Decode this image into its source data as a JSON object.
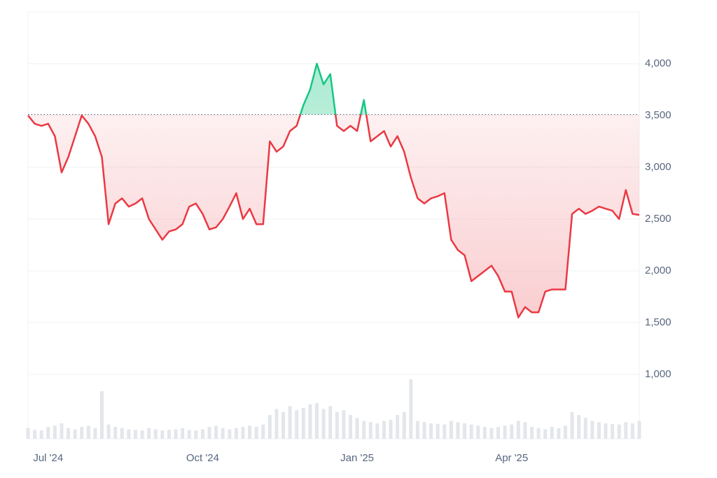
{
  "chart_data": {
    "type": "line",
    "categories": [
      null,
      null,
      null,
      "Jul '24",
      null,
      null,
      null,
      null,
      null,
      null,
      null,
      null,
      null,
      null,
      null,
      null,
      null,
      null,
      null,
      null,
      null,
      null,
      null,
      null,
      null,
      null,
      "Oct '24",
      null,
      null,
      null,
      null,
      null,
      null,
      null,
      null,
      null,
      null,
      null,
      null,
      null,
      null,
      null,
      null,
      null,
      null,
      null,
      null,
      null,
      null,
      "Jan '25",
      null,
      null,
      null,
      null,
      null,
      null,
      null,
      null,
      null,
      null,
      null,
      null,
      null,
      null,
      null,
      null,
      null,
      null,
      null,
      null,
      null,
      null,
      "Apr '25",
      null,
      null,
      null,
      null,
      null,
      null,
      null,
      null,
      null,
      null,
      null,
      null,
      null,
      null,
      null,
      null,
      null,
      null,
      null
    ],
    "series": [
      {
        "values": [
          3500,
          3420,
          3400,
          3420,
          3300,
          2950,
          3100,
          3300,
          3500,
          3420,
          3300,
          3100,
          2450,
          2650,
          2700,
          2620,
          2650,
          2700,
          2500,
          2400,
          2300,
          2380,
          2400,
          2450,
          2620,
          2650,
          2550,
          2400,
          2420,
          2500,
          2620,
          2750,
          2500,
          2600,
          2450,
          2450,
          3250,
          3150,
          3200,
          3350,
          3400,
          3600,
          3750,
          4000,
          3800,
          3900,
          3400,
          3350,
          3400,
          3350,
          3650,
          3250,
          3300,
          3350,
          3200,
          3300,
          3150,
          2900,
          2700,
          2650,
          2700,
          2720,
          2750,
          2300,
          2200,
          2150,
          1900,
          1950,
          2000,
          2050,
          1950,
          1800,
          1800,
          1550,
          1650,
          1600,
          1600,
          1800,
          1820,
          1820,
          1820,
          2550,
          2600,
          2550,
          2580,
          2620,
          2600,
          2580,
          2500,
          2780,
          2550,
          2540
        ]
      }
    ],
    "volume": [
      18,
      15,
      14,
      20,
      22,
      26,
      18,
      16,
      20,
      22,
      18,
      80,
      24,
      20,
      18,
      16,
      15,
      14,
      18,
      16,
      14,
      15,
      16,
      18,
      15,
      14,
      16,
      20,
      22,
      18,
      16,
      18,
      20,
      22,
      20,
      24,
      40,
      50,
      45,
      55,
      48,
      52,
      58,
      60,
      50,
      55,
      45,
      48,
      40,
      35,
      30,
      28,
      26,
      30,
      32,
      40,
      45,
      100,
      30,
      28,
      26,
      25,
      24,
      30,
      28,
      26,
      24,
      22,
      20,
      18,
      20,
      22,
      24,
      30,
      28,
      20,
      18,
      16,
      20,
      18,
      22,
      45,
      40,
      35,
      30,
      28,
      26,
      25,
      24,
      28,
      26,
      30
    ],
    "baseline": 3510,
    "colors": {
      "up": "#16c784",
      "down": "#ea3943",
      "volume": "#e3e6ea"
    },
    "ylim": [
      378,
      4500
    ],
    "yticks": [
      {
        "value": 1000,
        "label": "1,000"
      },
      {
        "value": 1500,
        "label": "1,500"
      },
      {
        "value": 2000,
        "label": "2,000"
      },
      {
        "value": 2500,
        "label": "2,500"
      },
      {
        "value": 3000,
        "label": "3,000"
      },
      {
        "value": 3500,
        "label": "3,500"
      },
      {
        "value": 4000,
        "label": "4,000"
      }
    ],
    "grid": true
  }
}
